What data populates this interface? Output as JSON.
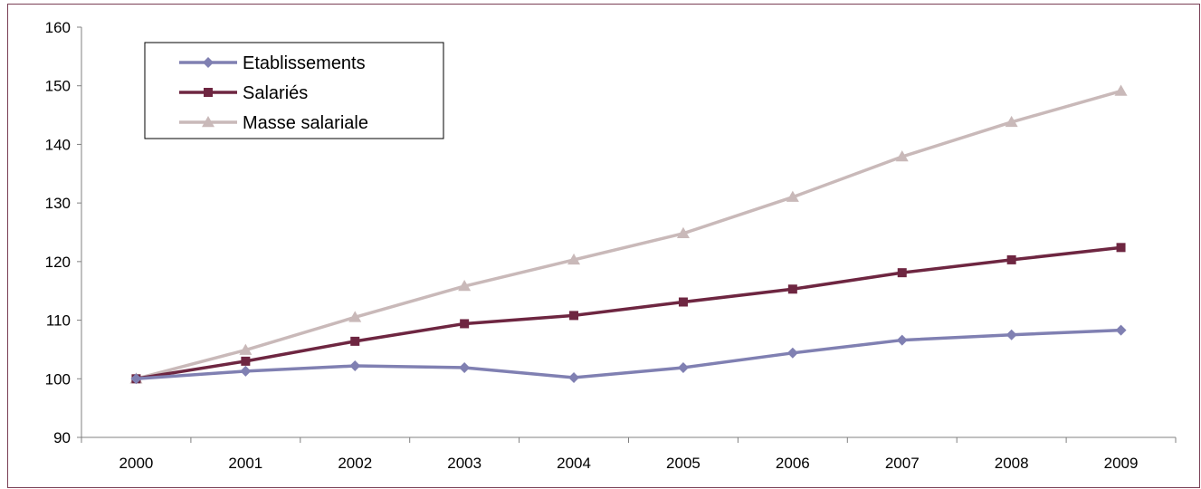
{
  "chart_data": {
    "type": "line",
    "categories": [
      "2000",
      "2001",
      "2002",
      "2003",
      "2004",
      "2005",
      "2006",
      "2007",
      "2008",
      "2009"
    ],
    "ylim": [
      90,
      160
    ],
    "yticks": [
      "90",
      "100",
      "110",
      "120",
      "130",
      "140",
      "150",
      "160"
    ],
    "grid": false,
    "legend_position": "top-left",
    "series": [
      {
        "name": "Etablissements",
        "color": "#8080b2",
        "marker": "diamond",
        "values": [
          100,
          101.3,
          102.2,
          101.9,
          100.2,
          101.9,
          104.4,
          106.6,
          107.5,
          108.3
        ]
      },
      {
        "name": "Salariés",
        "color": "#6e2641",
        "marker": "square",
        "values": [
          100,
          103.0,
          106.4,
          109.4,
          110.8,
          113.1,
          115.3,
          118.1,
          120.3,
          122.4
        ]
      },
      {
        "name": "Masse salariale",
        "color": "#c9b9b9",
        "marker": "triangle",
        "values": [
          100,
          104.9,
          110.5,
          115.8,
          120.3,
          124.8,
          131.0,
          137.9,
          143.8,
          149.1
        ]
      }
    ]
  }
}
